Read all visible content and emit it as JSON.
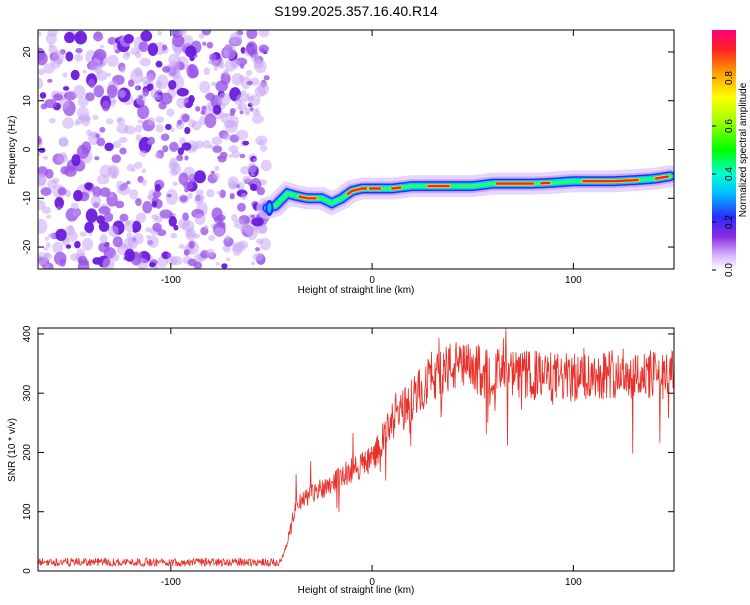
{
  "title": "S199.2025.357.16.40.R14",
  "chart_data": [
    {
      "type": "heatmap",
      "xlabel": "Height of straight line (km)",
      "ylabel": "Frequency (Hz)",
      "xlim": [
        -166,
        150
      ],
      "ylim": [
        -24.5,
        24.5
      ],
      "xticks": [
        -100,
        0,
        100
      ],
      "xticklabels": [
        "-100",
        "0",
        "100"
      ],
      "yticks": [
        -20,
        -10,
        0,
        10,
        20
      ],
      "yticklabels": [
        "-20",
        "-10",
        "0",
        "10",
        "20"
      ],
      "noise_region_x": [
        -166,
        -52
      ],
      "signal_start_x": -52,
      "ridge": {
        "height_km": [
          -52,
          -48,
          -42,
          -38,
          -32,
          -25,
          -20,
          -15,
          -10,
          -5,
          0,
          10,
          20,
          30,
          40,
          50,
          60,
          70,
          80,
          90,
          100,
          110,
          120,
          130,
          140,
          148
        ],
        "frequency_hz": [
          -12,
          -11.5,
          -9,
          -9.5,
          -10,
          -10,
          -11,
          -10,
          -8.5,
          -8,
          -8,
          -8,
          -7.5,
          -7.5,
          -7.5,
          -7.5,
          -7,
          -7,
          -7,
          -6.8,
          -6.5,
          -6.5,
          -6.5,
          -6.3,
          -6,
          -5.5
        ]
      },
      "colorbar": {
        "label": "Normalized spectral amplitude",
        "range": [
          0.0,
          1.0
        ],
        "ticks": [
          0.0,
          0.2,
          0.4,
          0.6,
          0.8
        ],
        "ticklabels": [
          "0.0",
          "0.2",
          "0.4",
          "0.6",
          "0.8"
        ]
      }
    },
    {
      "type": "line",
      "xlabel": "Height of straight line (km)",
      "ylabel": "SNR (10 * v/v)",
      "xlim": [
        -166,
        150
      ],
      "ylim": [
        0,
        410
      ],
      "xticks": [
        -100,
        0,
        100
      ],
      "xticklabels": [
        "-100",
        "0",
        "100"
      ],
      "yticks": [
        0,
        100,
        200,
        300,
        400
      ],
      "yticklabels": [
        "0",
        "100",
        "200",
        "300",
        "400"
      ],
      "color": "#e8302a",
      "envelope": {
        "height_km": [
          -166,
          -45,
          -42,
          -38,
          -30,
          -20,
          -10,
          0,
          10,
          20,
          30,
          40,
          50,
          60,
          70,
          80,
          100,
          120,
          140,
          150
        ],
        "snr": [
          15,
          15,
          50,
          110,
          130,
          150,
          170,
          190,
          250,
          290,
          330,
          345,
          340,
          335,
          330,
          330,
          325,
          335,
          330,
          330
        ]
      }
    }
  ]
}
